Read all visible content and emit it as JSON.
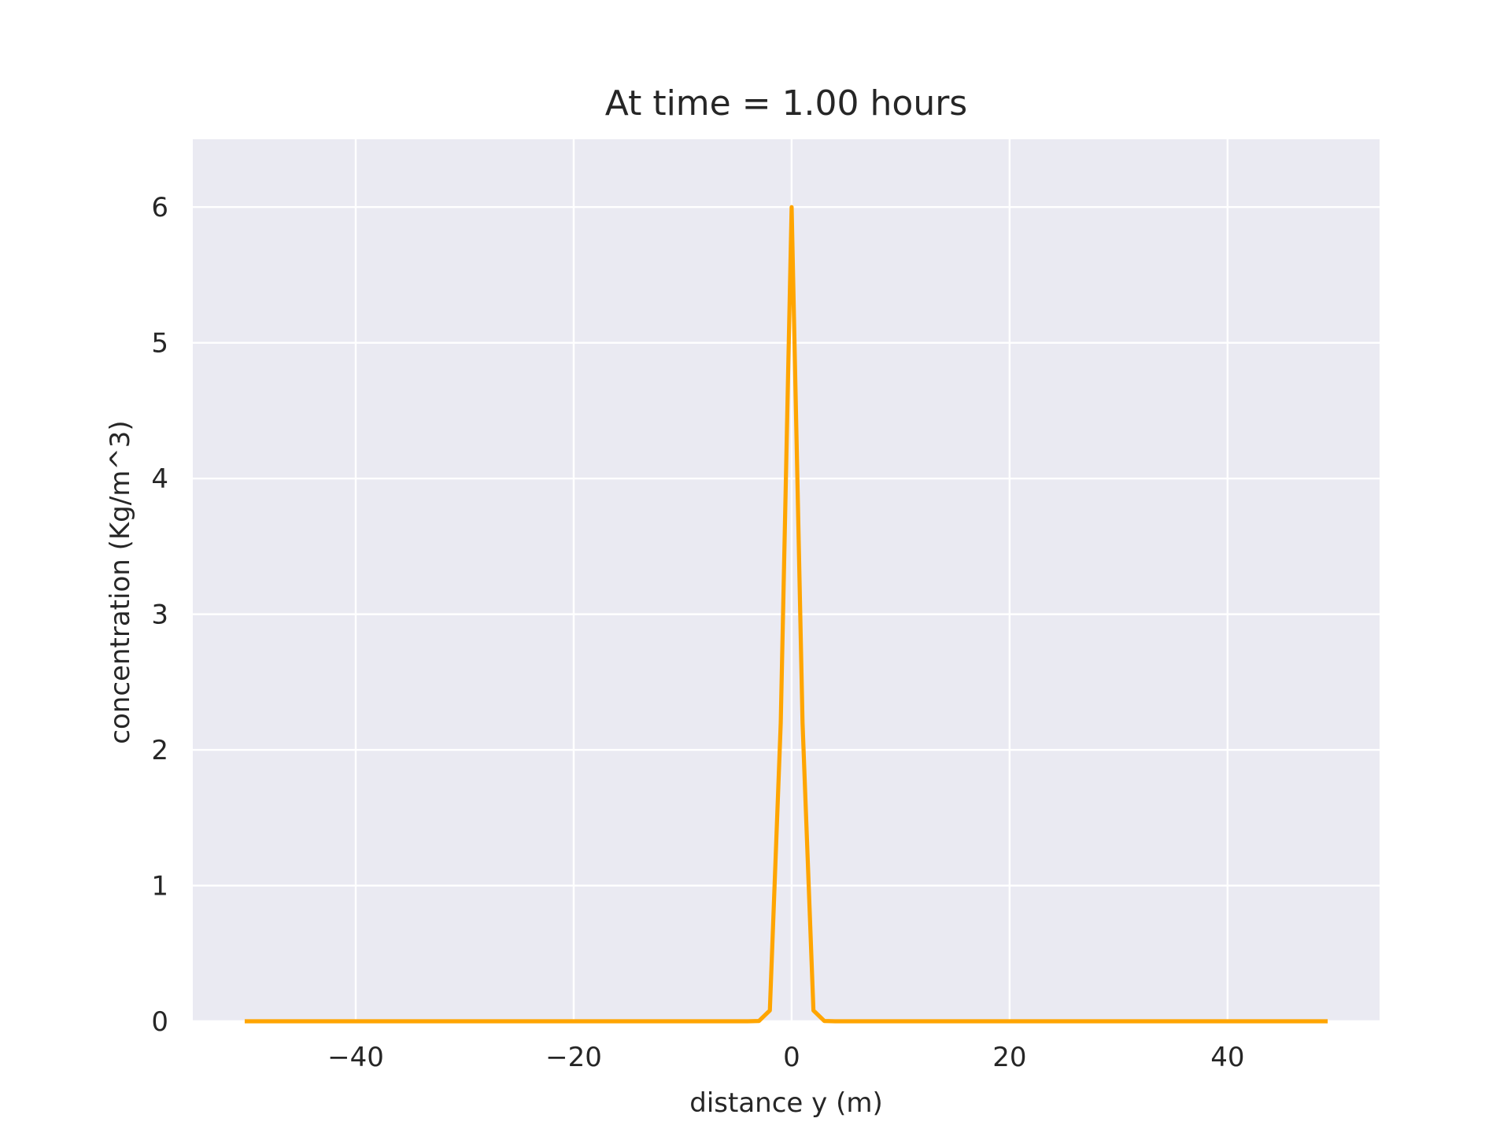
{
  "chart_data": {
    "type": "line",
    "title": "At time = 1.00 hours",
    "xlabel": "distance y (m)",
    "ylabel": "concentration (Kg/m^3)",
    "xlim": [
      -54.95,
      53.95
    ],
    "ylim": [
      0,
      6.5
    ],
    "xticks": [
      -40,
      -20,
      0,
      20,
      40
    ],
    "xtick_labels": [
      "−40",
      "−20",
      "0",
      "20",
      "40"
    ],
    "yticks": [
      0,
      1,
      2,
      3,
      4,
      5,
      6
    ],
    "ytick_labels": [
      "0",
      "1",
      "2",
      "3",
      "4",
      "5",
      "6"
    ],
    "grid": true,
    "series": [
      {
        "color": "#ffa500",
        "x": [
          -50,
          -49,
          -48,
          -47,
          -46,
          -45,
          -44,
          -43,
          -42,
          -41,
          -40,
          -39,
          -38,
          -37,
          -36,
          -35,
          -34,
          -33,
          -32,
          -31,
          -30,
          -29,
          -28,
          -27,
          -26,
          -25,
          -24,
          -23,
          -22,
          -21,
          -20,
          -19,
          -18,
          -17,
          -16,
          -15,
          -14,
          -13,
          -12,
          -11,
          -10,
          -9,
          -8,
          -7,
          -6,
          -5,
          -4,
          -3,
          -2,
          -1,
          0,
          1,
          2,
          3,
          4,
          5,
          6,
          7,
          8,
          9,
          10,
          11,
          12,
          13,
          14,
          15,
          16,
          17,
          18,
          19,
          20,
          21,
          22,
          23,
          24,
          25,
          26,
          27,
          28,
          29,
          30,
          31,
          32,
          33,
          34,
          35,
          36,
          37,
          38,
          39,
          40,
          41,
          42,
          43,
          44,
          45,
          46,
          47,
          48,
          49
        ],
        "y": [
          0,
          0,
          0,
          0,
          0,
          0,
          0,
          0,
          0,
          0,
          0,
          0,
          0,
          0,
          0,
          0,
          0,
          0,
          0,
          0,
          0,
          0,
          0,
          0,
          0,
          0,
          0,
          0,
          0,
          0,
          0,
          0,
          0,
          0,
          0,
          0,
          0,
          0,
          0,
          0,
          0,
          0,
          0,
          0,
          0,
          0,
          0,
          0.002,
          0.08,
          2.2,
          6.0,
          2.2,
          0.08,
          0.002,
          0,
          0,
          0,
          0,
          0,
          0,
          0,
          0,
          0,
          0,
          0,
          0,
          0,
          0,
          0,
          0,
          0,
          0,
          0,
          0,
          0,
          0,
          0,
          0,
          0,
          0,
          0,
          0,
          0,
          0,
          0,
          0,
          0,
          0,
          0,
          0,
          0,
          0,
          0,
          0,
          0,
          0,
          0,
          0,
          0,
          0
        ]
      }
    ]
  }
}
